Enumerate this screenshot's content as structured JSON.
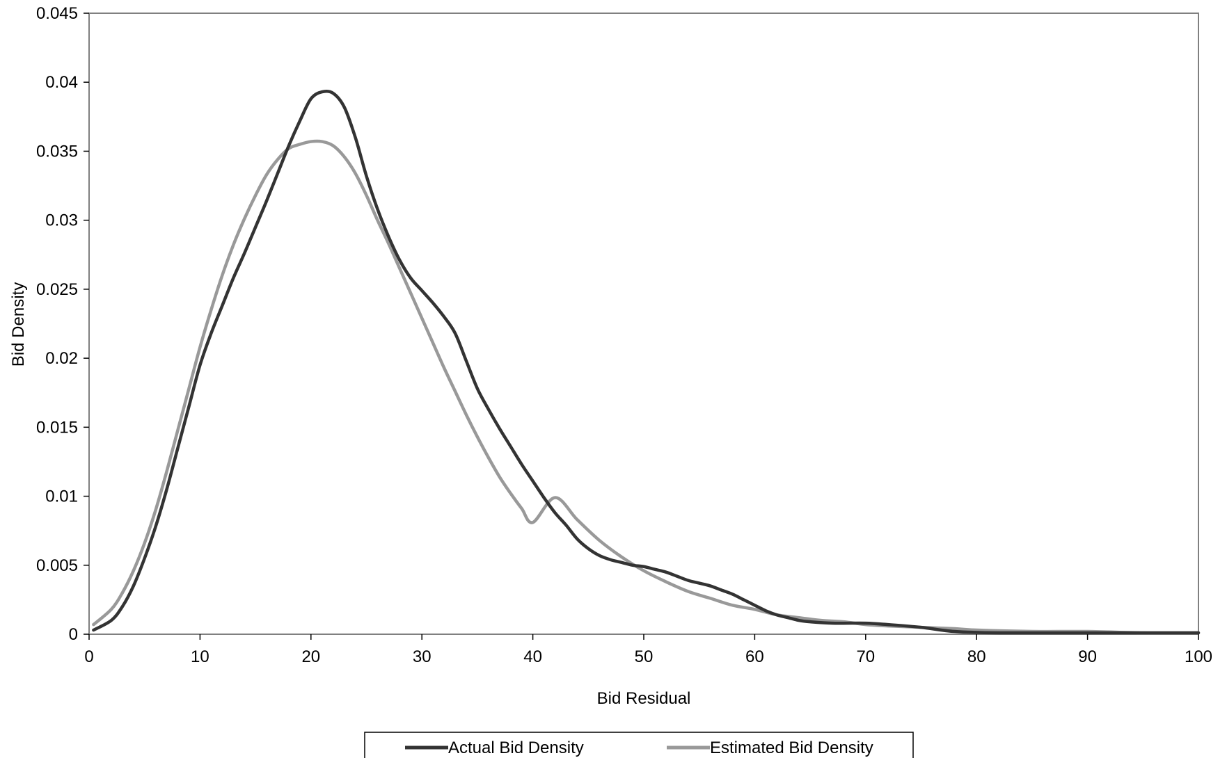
{
  "chart_data": {
    "type": "line",
    "title": "",
    "xlabel": "Bid Residual",
    "ylabel": "Bid Density",
    "xlim": [
      0,
      100
    ],
    "ylim": [
      0,
      0.045
    ],
    "x_ticks": [
      "0",
      "10",
      "20",
      "30",
      "40",
      "50",
      "60",
      "70",
      "80",
      "90",
      "100"
    ],
    "y_ticks": [
      "0",
      "0.005",
      "0.01",
      "0.015",
      "0.02",
      "0.025",
      "0.03",
      "0.035",
      "0.04",
      "0.045"
    ],
    "grid": false,
    "legend_position": "bottom",
    "series": [
      {
        "name": "Actual Bid Density",
        "color": "#333333",
        "points": [
          [
            0.4,
            0.0003
          ],
          [
            2,
            0.001
          ],
          [
            3,
            0.002
          ],
          [
            4,
            0.0035
          ],
          [
            5,
            0.0055
          ],
          [
            6,
            0.0078
          ],
          [
            7,
            0.0105
          ],
          [
            8,
            0.0135
          ],
          [
            9,
            0.0165
          ],
          [
            10,
            0.0195
          ],
          [
            11,
            0.0218
          ],
          [
            12,
            0.0238
          ],
          [
            13,
            0.0258
          ],
          [
            14,
            0.0276
          ],
          [
            15,
            0.0295
          ],
          [
            16,
            0.0314
          ],
          [
            17,
            0.0334
          ],
          [
            18,
            0.0354
          ],
          [
            19,
            0.0372
          ],
          [
            20,
            0.0388
          ],
          [
            21,
            0.0393
          ],
          [
            22,
            0.0392
          ],
          [
            23,
            0.0382
          ],
          [
            24,
            0.036
          ],
          [
            25,
            0.0332
          ],
          [
            26,
            0.0308
          ],
          [
            27,
            0.0288
          ],
          [
            28,
            0.0271
          ],
          [
            29,
            0.0258
          ],
          [
            30,
            0.0249
          ],
          [
            31,
            0.024
          ],
          [
            32,
            0.023
          ],
          [
            33,
            0.0218
          ],
          [
            34,
            0.0198
          ],
          [
            35,
            0.0178
          ],
          [
            36,
            0.0163
          ],
          [
            37,
            0.0149
          ],
          [
            38,
            0.0136
          ],
          [
            39,
            0.0123
          ],
          [
            40,
            0.0111
          ],
          [
            41,
            0.0099
          ],
          [
            42,
            0.0088
          ],
          [
            43,
            0.0079
          ],
          [
            44,
            0.0069
          ],
          [
            45,
            0.0062
          ],
          [
            46,
            0.0057
          ],
          [
            47,
            0.0054
          ],
          [
            48,
            0.0052
          ],
          [
            49,
            0.005
          ],
          [
            50,
            0.0049
          ],
          [
            51,
            0.0047
          ],
          [
            52,
            0.0045
          ],
          [
            53,
            0.0042
          ],
          [
            54,
            0.0039
          ],
          [
            55,
            0.0037
          ],
          [
            56,
            0.0035
          ],
          [
            57,
            0.0032
          ],
          [
            58,
            0.0029
          ],
          [
            59,
            0.0025
          ],
          [
            60,
            0.0021
          ],
          [
            61,
            0.0017
          ],
          [
            62,
            0.0014
          ],
          [
            63,
            0.0012
          ],
          [
            64,
            0.001
          ],
          [
            65,
            0.0009
          ],
          [
            67,
            0.0008
          ],
          [
            70,
            0.0008
          ],
          [
            72,
            0.0007
          ],
          [
            75,
            0.0005
          ],
          [
            78,
            0.0002
          ],
          [
            82,
            0.0001
          ],
          [
            90,
            0.0001
          ],
          [
            100,
            0.0001
          ]
        ]
      },
      {
        "name": "Estimated Bid Density",
        "color": "#999999",
        "points": [
          [
            0.4,
            0.0007
          ],
          [
            2,
            0.0018
          ],
          [
            3,
            0.003
          ],
          [
            4,
            0.0046
          ],
          [
            5,
            0.0066
          ],
          [
            6,
            0.009
          ],
          [
            7,
            0.0118
          ],
          [
            8,
            0.0148
          ],
          [
            9,
            0.0178
          ],
          [
            10,
            0.0208
          ],
          [
            11,
            0.0235
          ],
          [
            12,
            0.026
          ],
          [
            13,
            0.0282
          ],
          [
            14,
            0.0301
          ],
          [
            15,
            0.0318
          ],
          [
            16,
            0.0333
          ],
          [
            17,
            0.0344
          ],
          [
            18,
            0.0352
          ],
          [
            19,
            0.0355
          ],
          [
            20,
            0.0357
          ],
          [
            21,
            0.0357
          ],
          [
            22,
            0.0354
          ],
          [
            23,
            0.0346
          ],
          [
            24,
            0.0334
          ],
          [
            25,
            0.0318
          ],
          [
            26,
            0.03
          ],
          [
            27,
            0.0283
          ],
          [
            28,
            0.0265
          ],
          [
            29,
            0.0247
          ],
          [
            30,
            0.0229
          ],
          [
            31,
            0.0211
          ],
          [
            32,
            0.0193
          ],
          [
            33,
            0.0176
          ],
          [
            34,
            0.0159
          ],
          [
            35,
            0.0143
          ],
          [
            36,
            0.0128
          ],
          [
            37,
            0.0114
          ],
          [
            38,
            0.0102
          ],
          [
            39,
            0.0091
          ],
          [
            40,
            0.0081
          ],
          [
            42,
            0.0099
          ],
          [
            44,
            0.0083
          ],
          [
            46,
            0.0068
          ],
          [
            48,
            0.0056
          ],
          [
            50,
            0.0046
          ],
          [
            52,
            0.0038
          ],
          [
            54,
            0.0031
          ],
          [
            56,
            0.0026
          ],
          [
            58,
            0.0021
          ],
          [
            60,
            0.0018
          ],
          [
            62,
            0.0014
          ],
          [
            64,
            0.0012
          ],
          [
            66,
            0.001
          ],
          [
            68,
            0.0009
          ],
          [
            70,
            0.0007
          ],
          [
            72,
            0.0006
          ],
          [
            75,
            0.0005
          ],
          [
            78,
            0.0004
          ],
          [
            80,
            0.0003
          ],
          [
            85,
            0.0002
          ],
          [
            90,
            0.0002
          ],
          [
            95,
            0.0001
          ],
          [
            100,
            0.0001
          ]
        ]
      }
    ]
  }
}
